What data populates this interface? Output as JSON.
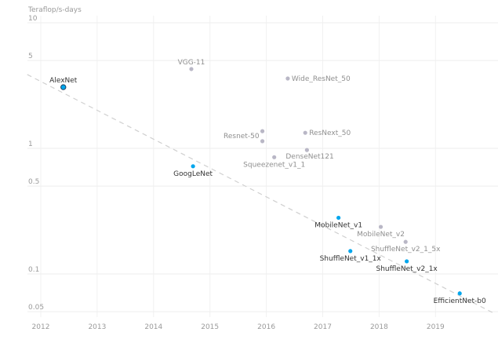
{
  "chart_data": {
    "type": "scatter",
    "title": "",
    "xlabel": "",
    "ylabel": "Teraflop/s-days",
    "yscale": "log",
    "xlim": [
      2011.76,
      2020.06
    ],
    "ylim": [
      0.04,
      10
    ],
    "x_ticks": [
      "2012",
      "2013",
      "2014",
      "2015",
      "2016",
      "2017",
      "2018",
      "2019"
    ],
    "y_ticks": [
      "10",
      "5",
      "1",
      "0.5",
      "0.1",
      "0.05"
    ],
    "grid": true,
    "colors": {
      "highlight": "#00a6ed",
      "muted": "#b9b7c6",
      "trend": "#d0d0d0",
      "highlight_text": "#333333",
      "muted_text": "#8f8f8f",
      "outline": "#1f3f5f"
    },
    "points": [
      {
        "label": "AlexNet",
        "x": 2012.4,
        "y": 3.07,
        "highlight": true,
        "outlined": true,
        "pos": "above"
      },
      {
        "label": "VGG-11",
        "x": 2014.67,
        "y": 4.28,
        "highlight": false,
        "pos": "above"
      },
      {
        "label": "Wide_ResNet_50",
        "x": 2016.38,
        "y": 3.6,
        "highlight": false,
        "pos": "right"
      },
      {
        "label": "Resnet-50",
        "x": 2015.93,
        "y": 1.37,
        "highlight": false,
        "pos": "left"
      },
      {
        "label": "",
        "x": 2015.93,
        "y": 1.14,
        "highlight": false,
        "pos": "none"
      },
      {
        "label": "ResNext_50",
        "x": 2016.69,
        "y": 1.33,
        "highlight": false,
        "pos": "right"
      },
      {
        "label": "DenseNet121",
        "x": 2016.72,
        "y": 0.97,
        "highlight": false,
        "pos": "below-right"
      },
      {
        "label": "Squeezenet_v1_1",
        "x": 2016.14,
        "y": 0.85,
        "highlight": false,
        "pos": "below"
      },
      {
        "label": "GoogLeNet",
        "x": 2014.7,
        "y": 0.72,
        "highlight": true,
        "pos": "below"
      },
      {
        "label": "MobileNet_v1",
        "x": 2017.28,
        "y": 0.28,
        "highlight": true,
        "pos": "below"
      },
      {
        "label": "MobileNet_v2",
        "x": 2018.03,
        "y": 0.237,
        "highlight": false,
        "pos": "below"
      },
      {
        "label": "ShuffleNet_v2_1_5x",
        "x": 2018.47,
        "y": 0.18,
        "highlight": false,
        "pos": "below"
      },
      {
        "label": "ShuffleNet_v1_1x",
        "x": 2017.49,
        "y": 0.152,
        "highlight": true,
        "pos": "below"
      },
      {
        "label": "ShuffleNet_v2_1x",
        "x": 2018.49,
        "y": 0.126,
        "highlight": true,
        "pos": "below"
      },
      {
        "label": "EfficientNet-b0",
        "x": 2019.43,
        "y": 0.07,
        "highlight": true,
        "pos": "below"
      }
    ],
    "trend_line": {
      "style": "dashed",
      "from": [
        2011.76,
        3.87
      ],
      "to": [
        2020.06,
        0.048
      ]
    }
  }
}
